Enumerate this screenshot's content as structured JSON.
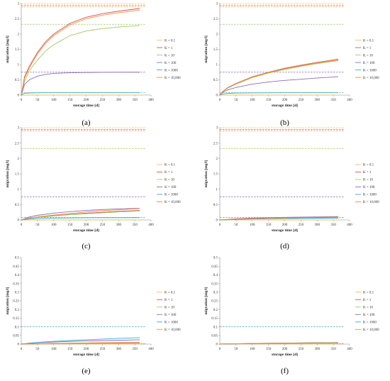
{
  "colors": {
    "K = 0.1": "#f2c14e",
    "K = 1": "#d9534f",
    "K = 10": "#9ecb63",
    "K = 100": "#8a6bb5",
    "K = 1000": "#3fa9c9",
    "K = 10,000": "#f08a3c"
  },
  "chart_data": [
    {
      "type": "line",
      "panel_label": "(a)",
      "xlabel": "storage time [d]",
      "ylabel": "migration [mg/l]",
      "xlim": [
        0,
        400
      ],
      "ylim": [
        0,
        3
      ],
      "xticks": [
        "0",
        "50",
        "100",
        "150",
        "200",
        "250",
        "300",
        "350",
        "400"
      ],
      "yticks": [
        "0",
        "0.5",
        "1",
        "1.5",
        "2",
        "2.5",
        "3"
      ],
      "legend": [
        "K = 0.1",
        "K = 1",
        "K = 10",
        "K = 100",
        "K = 1000",
        "K = 10,000"
      ],
      "legend_position": "right",
      "series": [
        {
          "name": "K = 0.1",
          "limit": 3.0,
          "x": [
            0,
            365
          ],
          "values": [
            0.002,
            0.002
          ]
        },
        {
          "name": "K = 1",
          "limit": 2.94,
          "x": [
            0,
            10,
            25,
            50,
            75,
            100,
            150,
            200,
            250,
            300,
            365
          ],
          "values": [
            0,
            0.6,
            0.95,
            1.4,
            1.75,
            2.0,
            2.35,
            2.55,
            2.67,
            2.75,
            2.84
          ]
        },
        {
          "name": "K = 10",
          "limit": 2.32,
          "x": [
            0,
            10,
            25,
            50,
            75,
            100,
            150,
            200,
            250,
            300,
            365
          ],
          "values": [
            0,
            0.45,
            0.8,
            1.15,
            1.45,
            1.65,
            1.95,
            2.1,
            2.18,
            2.23,
            2.28
          ]
        },
        {
          "name": "K = 100",
          "limit": 0.75,
          "x": [
            0,
            10,
            25,
            50,
            75,
            100,
            150,
            200,
            250,
            300,
            365
          ],
          "values": [
            0,
            0.35,
            0.5,
            0.62,
            0.68,
            0.71,
            0.73,
            0.74,
            0.745,
            0.748,
            0.75
          ]
        },
        {
          "name": "K = 1000",
          "limit": 0.08,
          "x": [
            0,
            10,
            25,
            50,
            100,
            200,
            365
          ],
          "values": [
            0,
            0.06,
            0.07,
            0.075,
            0.077,
            0.078,
            0.078
          ]
        },
        {
          "name": "K = 10,000",
          "limit": 2.9,
          "x": [
            0,
            10,
            25,
            50,
            75,
            100,
            150,
            200,
            250,
            300,
            365
          ],
          "values": [
            0,
            0.55,
            0.9,
            1.35,
            1.7,
            1.95,
            2.3,
            2.5,
            2.62,
            2.7,
            2.79
          ]
        }
      ]
    },
    {
      "type": "line",
      "panel_label": "(b)",
      "xlabel": "storage time [d]",
      "ylabel": "migration [mg/l]",
      "xlim": [
        0,
        400
      ],
      "ylim": [
        0,
        3
      ],
      "xticks": [
        "0",
        "50",
        "100",
        "150",
        "200",
        "250",
        "300",
        "350",
        "400"
      ],
      "yticks": [
        "0",
        "0.5",
        "1",
        "1.5",
        "2",
        "2.5",
        "3"
      ],
      "legend": [
        "K = 0.1",
        "K = 1",
        "K = 10",
        "K = 100",
        "K = 1000",
        "K = 10,000"
      ],
      "legend_position": "right",
      "series": [
        {
          "name": "K = 0.1",
          "limit": 3.0,
          "x": [
            0,
            365
          ],
          "values": [
            0.002,
            0.002
          ]
        },
        {
          "name": "K = 1",
          "limit": 2.94,
          "x": [
            0,
            10,
            25,
            50,
            100,
            150,
            200,
            250,
            300,
            365
          ],
          "values": [
            0,
            0.13,
            0.25,
            0.38,
            0.6,
            0.75,
            0.88,
            0.98,
            1.07,
            1.18
          ]
        },
        {
          "name": "K = 10",
          "limit": 2.32,
          "x": [
            0,
            10,
            25,
            50,
            100,
            150,
            200,
            250,
            300,
            365
          ],
          "values": [
            0,
            0.12,
            0.23,
            0.36,
            0.57,
            0.72,
            0.84,
            0.94,
            1.03,
            1.13
          ]
        },
        {
          "name": "K = 100",
          "limit": 0.75,
          "x": [
            0,
            10,
            25,
            50,
            100,
            150,
            200,
            250,
            300,
            365
          ],
          "values": [
            0,
            0.1,
            0.17,
            0.25,
            0.36,
            0.43,
            0.48,
            0.52,
            0.56,
            0.6
          ]
        },
        {
          "name": "K = 1000",
          "limit": 0.08,
          "x": [
            0,
            10,
            25,
            50,
            100,
            200,
            365
          ],
          "values": [
            0,
            0.04,
            0.055,
            0.065,
            0.072,
            0.076,
            0.078
          ]
        },
        {
          "name": "K = 10,000",
          "limit": 2.9,
          "x": [
            0,
            10,
            25,
            50,
            100,
            150,
            200,
            250,
            300,
            365
          ],
          "values": [
            0,
            0.13,
            0.24,
            0.37,
            0.59,
            0.74,
            0.86,
            0.96,
            1.05,
            1.15
          ]
        }
      ]
    },
    {
      "type": "line",
      "panel_label": "(c)",
      "xlabel": "storage time [d]",
      "ylabel": "migration [mg/l]",
      "xlim": [
        0,
        400
      ],
      "ylim": [
        0,
        3
      ],
      "xticks": [
        "0",
        "50",
        "100",
        "150",
        "200",
        "250",
        "300",
        "350",
        "400"
      ],
      "yticks": [
        "0",
        "0.5",
        "1",
        "1.5",
        "2",
        "2.5",
        "3"
      ],
      "legend": [
        "K = 0.1",
        "K = 1",
        "K = 10",
        "K = 100",
        "K = 1000",
        "K = 10,000"
      ],
      "legend_position": "right",
      "series": [
        {
          "name": "K = 0.1",
          "limit": 3.0,
          "x": [
            0,
            365
          ],
          "values": [
            0.002,
            0.002
          ]
        },
        {
          "name": "K = 1",
          "limit": 2.94,
          "x": [
            0,
            25,
            50,
            100,
            150,
            200,
            250,
            300,
            365
          ],
          "values": [
            0,
            0.06,
            0.09,
            0.14,
            0.18,
            0.22,
            0.25,
            0.28,
            0.31
          ]
        },
        {
          "name": "K = 10",
          "limit": 2.32,
          "x": [
            0,
            25,
            50,
            100,
            150,
            200,
            250,
            300,
            365
          ],
          "values": [
            0,
            0.05,
            0.08,
            0.13,
            0.17,
            0.2,
            0.23,
            0.26,
            0.29
          ]
        },
        {
          "name": "K = 100",
          "limit": 0.75,
          "x": [
            0,
            25,
            50,
            100,
            150,
            200,
            250,
            300,
            365
          ],
          "values": [
            0,
            0.1,
            0.15,
            0.22,
            0.27,
            0.31,
            0.34,
            0.36,
            0.38
          ]
        },
        {
          "name": "K = 1000",
          "limit": 0.08,
          "x": [
            0,
            25,
            50,
            100,
            200,
            365
          ],
          "values": [
            0,
            0.03,
            0.045,
            0.06,
            0.07,
            0.075
          ]
        },
        {
          "name": "K = 10,000",
          "limit": 2.9,
          "x": [
            0,
            25,
            50,
            100,
            150,
            200,
            250,
            300,
            365
          ],
          "values": [
            0,
            0.06,
            0.1,
            0.16,
            0.21,
            0.26,
            0.3,
            0.33,
            0.37
          ]
        }
      ]
    },
    {
      "type": "line",
      "panel_label": "(d)",
      "xlabel": "storage time [d]",
      "ylabel": "migration [mg/l]",
      "xlim": [
        0,
        400
      ],
      "ylim": [
        0,
        3
      ],
      "xticks": [
        "0",
        "50",
        "100",
        "150",
        "200",
        "250",
        "300",
        "350",
        "400"
      ],
      "yticks": [
        "0",
        "0.5",
        "1",
        "1.5",
        "2",
        "2.5",
        "3"
      ],
      "legend": [
        "K = 0.1",
        "K = 1",
        "K = 10",
        "K = 100",
        "K = 1000",
        "K = 10,000"
      ],
      "legend_position": "right",
      "series": [
        {
          "name": "K = 0.1",
          "limit": 3.0,
          "x": [
            0,
            365
          ],
          "values": [
            0.002,
            0.002
          ]
        },
        {
          "name": "K = 1",
          "limit": 2.94,
          "x": [
            0,
            50,
            100,
            200,
            300,
            365
          ],
          "values": [
            0,
            0.02,
            0.035,
            0.055,
            0.07,
            0.08
          ]
        },
        {
          "name": "K = 10",
          "limit": 2.32,
          "x": [
            0,
            50,
            100,
            200,
            300,
            365
          ],
          "values": [
            0,
            0.02,
            0.033,
            0.052,
            0.066,
            0.075
          ]
        },
        {
          "name": "K = 100",
          "limit": 0.75,
          "x": [
            0,
            50,
            100,
            200,
            300,
            365
          ],
          "values": [
            0,
            0.04,
            0.06,
            0.085,
            0.1,
            0.11
          ]
        },
        {
          "name": "K = 1000",
          "limit": 0.08,
          "x": [
            0,
            50,
            100,
            200,
            300,
            365
          ],
          "values": [
            0,
            0.02,
            0.03,
            0.045,
            0.055,
            0.06
          ]
        },
        {
          "name": "K = 10,000",
          "limit": 2.9,
          "x": [
            0,
            50,
            100,
            200,
            300,
            365
          ],
          "values": [
            0,
            0.025,
            0.04,
            0.065,
            0.085,
            0.095
          ]
        }
      ]
    },
    {
      "type": "line",
      "panel_label": "(e)",
      "xlabel": "storage time [d]",
      "ylabel": "migration [mg/l]",
      "xlim": [
        0,
        400
      ],
      "ylim": [
        0,
        0.5
      ],
      "xticks": [
        "0",
        "50",
        "100",
        "150",
        "200",
        "250",
        "300",
        "350",
        "400"
      ],
      "yticks": [
        "0",
        "0.05",
        "0.1",
        "0.15",
        "0.2",
        "0.25",
        "0.3",
        "0.35",
        "0.4",
        "0.45",
        "0.5"
      ],
      "legend": [
        "K = 0.1",
        "K = 1",
        "K = 10",
        "K = 100",
        "K = 1000",
        "K = 10,000"
      ],
      "legend_position": "right",
      "series": [
        {
          "name": "K = 0.1",
          "limit": 0.002,
          "x": [
            0,
            365
          ],
          "values": [
            0.001,
            0.001
          ]
        },
        {
          "name": "K = 1",
          "limit": 0.002,
          "x": [
            0,
            100,
            200,
            300,
            365
          ],
          "values": [
            0,
            0.003,
            0.005,
            0.006,
            0.007
          ]
        },
        {
          "name": "K = 10",
          "limit": 0.002,
          "x": [
            0,
            100,
            200,
            300,
            365
          ],
          "values": [
            0,
            0.004,
            0.006,
            0.008,
            0.009
          ]
        },
        {
          "name": "K = 100",
          "limit": 0.002,
          "x": [
            0,
            50,
            100,
            200,
            300,
            365
          ],
          "values": [
            0,
            0.008,
            0.012,
            0.018,
            0.022,
            0.025
          ]
        },
        {
          "name": "K = 1000",
          "limit": 0.1,
          "x": [
            0,
            25,
            50,
            100,
            150,
            200,
            250,
            300,
            365
          ],
          "values": [
            0,
            0.006,
            0.01,
            0.016,
            0.021,
            0.025,
            0.029,
            0.033,
            0.037
          ]
        },
        {
          "name": "K = 10,000",
          "limit": 0.002,
          "x": [
            0,
            100,
            200,
            300,
            365
          ],
          "values": [
            0,
            0.004,
            0.007,
            0.009,
            0.01
          ]
        }
      ]
    },
    {
      "type": "line",
      "panel_label": "(f)",
      "xlabel": "storage time [d]",
      "ylabel": "migration [mg/l]",
      "xlim": [
        0,
        400
      ],
      "ylim": [
        0,
        0.5
      ],
      "xticks": [
        "0",
        "50",
        "100",
        "150",
        "200",
        "250",
        "300",
        "350",
        "400"
      ],
      "yticks": [
        "0",
        "0.05",
        "0.1",
        "0.15",
        "0.2",
        "0.25",
        "0.3",
        "0.35",
        "0.4",
        "0.45",
        "0.5"
      ],
      "legend": [
        "K = 0.1",
        "K = 1",
        "K = 10",
        "K = 100",
        "K = 1000",
        "K = 10,000"
      ],
      "legend_position": "right",
      "series": [
        {
          "name": "K = 0.1",
          "limit": 0.002,
          "x": [
            0,
            365
          ],
          "values": [
            0.001,
            0.001
          ]
        },
        {
          "name": "K = 1",
          "limit": 0.002,
          "x": [
            0,
            100,
            200,
            300,
            365
          ],
          "values": [
            0,
            0.003,
            0.005,
            0.007,
            0.008
          ]
        },
        {
          "name": "K = 10",
          "limit": 0.002,
          "x": [
            0,
            100,
            200,
            300,
            365
          ],
          "values": [
            0,
            0.003,
            0.005,
            0.006,
            0.007
          ]
        },
        {
          "name": "K = 100",
          "limit": 0.002,
          "x": [
            0,
            100,
            200,
            300,
            365
          ],
          "values": [
            0,
            0.004,
            0.006,
            0.008,
            0.009
          ]
        },
        {
          "name": "K = 1000",
          "limit": 0.1,
          "x": [
            0,
            100,
            200,
            300,
            365
          ],
          "values": [
            0,
            0.003,
            0.005,
            0.006,
            0.007
          ]
        },
        {
          "name": "K = 10,000",
          "limit": 0.002,
          "x": [
            0,
            100,
            200,
            300,
            365
          ],
          "values": [
            0,
            0.004,
            0.006,
            0.008,
            0.009
          ]
        }
      ]
    }
  ]
}
